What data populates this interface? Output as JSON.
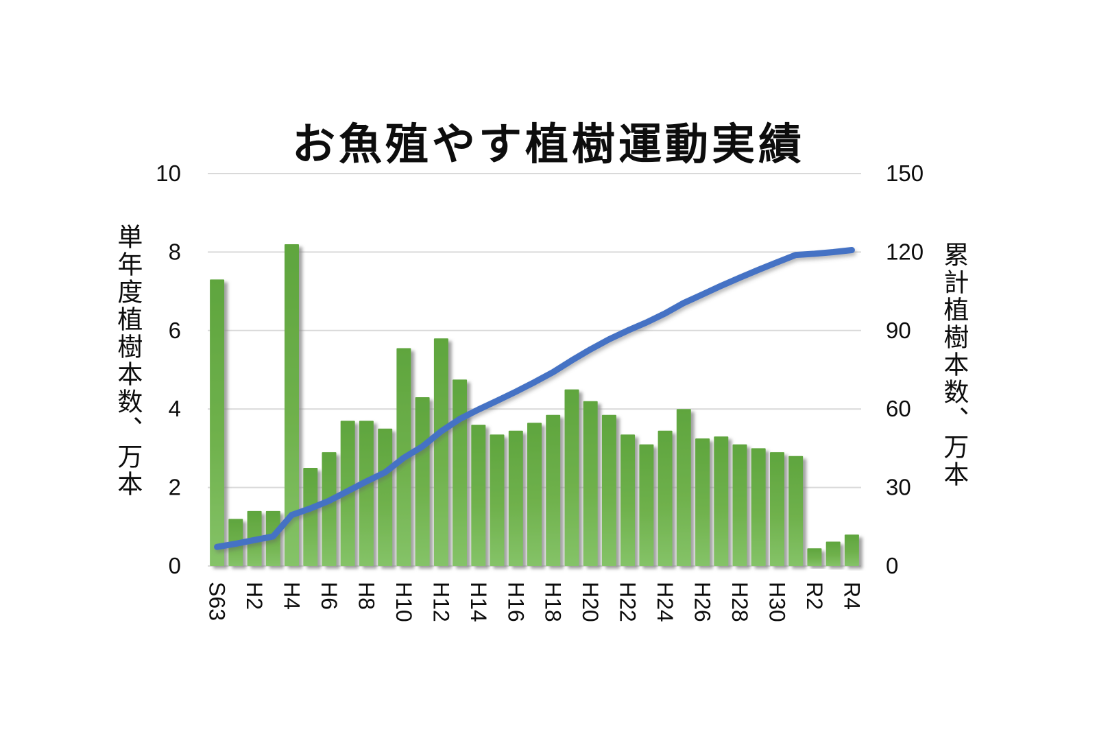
{
  "chart_data": {
    "type": "combo",
    "title": "お魚殖やす植樹運動実績",
    "left_axis": {
      "title": "単年度植樹本数、万本",
      "min": 0,
      "max": 10,
      "step": 2,
      "ticks": [
        "0",
        "2",
        "4",
        "6",
        "8",
        "10"
      ]
    },
    "right_axis": {
      "title": "累計植樹本数、万本",
      "min": 0,
      "max": 150,
      "step": 30,
      "ticks": [
        "0",
        "30",
        "60",
        "90",
        "120",
        "150"
      ]
    },
    "x_tick_labels": [
      "S63",
      "H2",
      "H4",
      "H6",
      "H8",
      "H10",
      "H12",
      "H14",
      "H16",
      "H18",
      "H20",
      "H22",
      "H24",
      "H26",
      "H28",
      "H30",
      "R2",
      "R4"
    ],
    "x_label_step": 2,
    "n_bars": 35,
    "grid": true,
    "legend": "none",
    "series": [
      {
        "name": "単年度植樹本数",
        "type": "bar",
        "axis": "left",
        "values": [
          7.3,
          1.2,
          1.4,
          1.4,
          8.2,
          2.5,
          2.9,
          3.7,
          3.7,
          3.5,
          5.55,
          4.3,
          5.8,
          4.75,
          3.6,
          3.35,
          3.45,
          3.65,
          3.85,
          4.5,
          4.2,
          3.85,
          3.35,
          3.1,
          3.45,
          4.0,
          3.25,
          3.3,
          3.1,
          3.0,
          2.9,
          2.8,
          0.45,
          0.62,
          0.8
        ]
      },
      {
        "name": "累計植樹本数",
        "type": "line",
        "axis": "right",
        "values": [
          7.3,
          8.5,
          9.9,
          11.3,
          19.5,
          22.0,
          24.9,
          28.6,
          32.3,
          35.8,
          41.35,
          45.65,
          51.45,
          56.2,
          59.8,
          63.15,
          66.6,
          70.25,
          74.1,
          78.6,
          82.8,
          86.65,
          90.0,
          93.1,
          96.55,
          100.55,
          103.8,
          107.1,
          110.2,
          113.2,
          116.1,
          118.9,
          119.35,
          119.97,
          120.77
        ]
      }
    ],
    "colors": {
      "bar_top": "#5fa53e",
      "bar_mid": "#6fb14c",
      "bar_bottom": "#85c368",
      "line": "#4472c4",
      "gridline": "#d9d9d9",
      "text": "#0d0d0d",
      "background": "#ffffff"
    }
  }
}
